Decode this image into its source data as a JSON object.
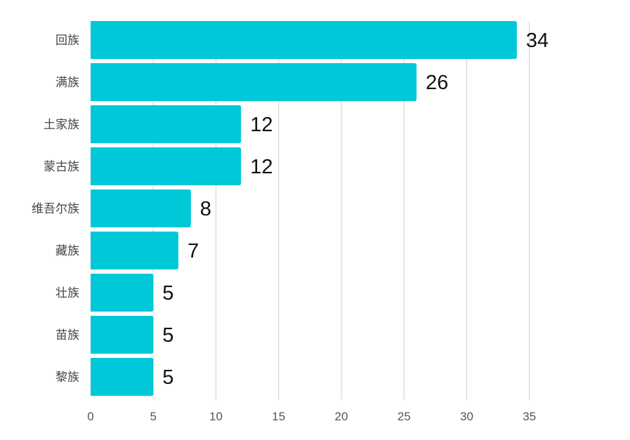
{
  "chart_data": {
    "type": "bar",
    "orientation": "horizontal",
    "title": "",
    "xlabel": "",
    "ylabel": "",
    "categories": [
      "回族",
      "满族",
      "土家族",
      "蒙古族",
      "维吾尔族",
      "藏族",
      "壮族",
      "苗族",
      "黎族"
    ],
    "values": [
      34,
      26,
      12,
      12,
      8,
      7,
      5,
      5,
      5
    ],
    "xlim": [
      0,
      35
    ],
    "xticks": [
      0,
      5,
      10,
      15,
      20,
      25,
      30,
      35
    ],
    "grid": true,
    "legend": "none",
    "bar_color": "#00c8d8"
  }
}
